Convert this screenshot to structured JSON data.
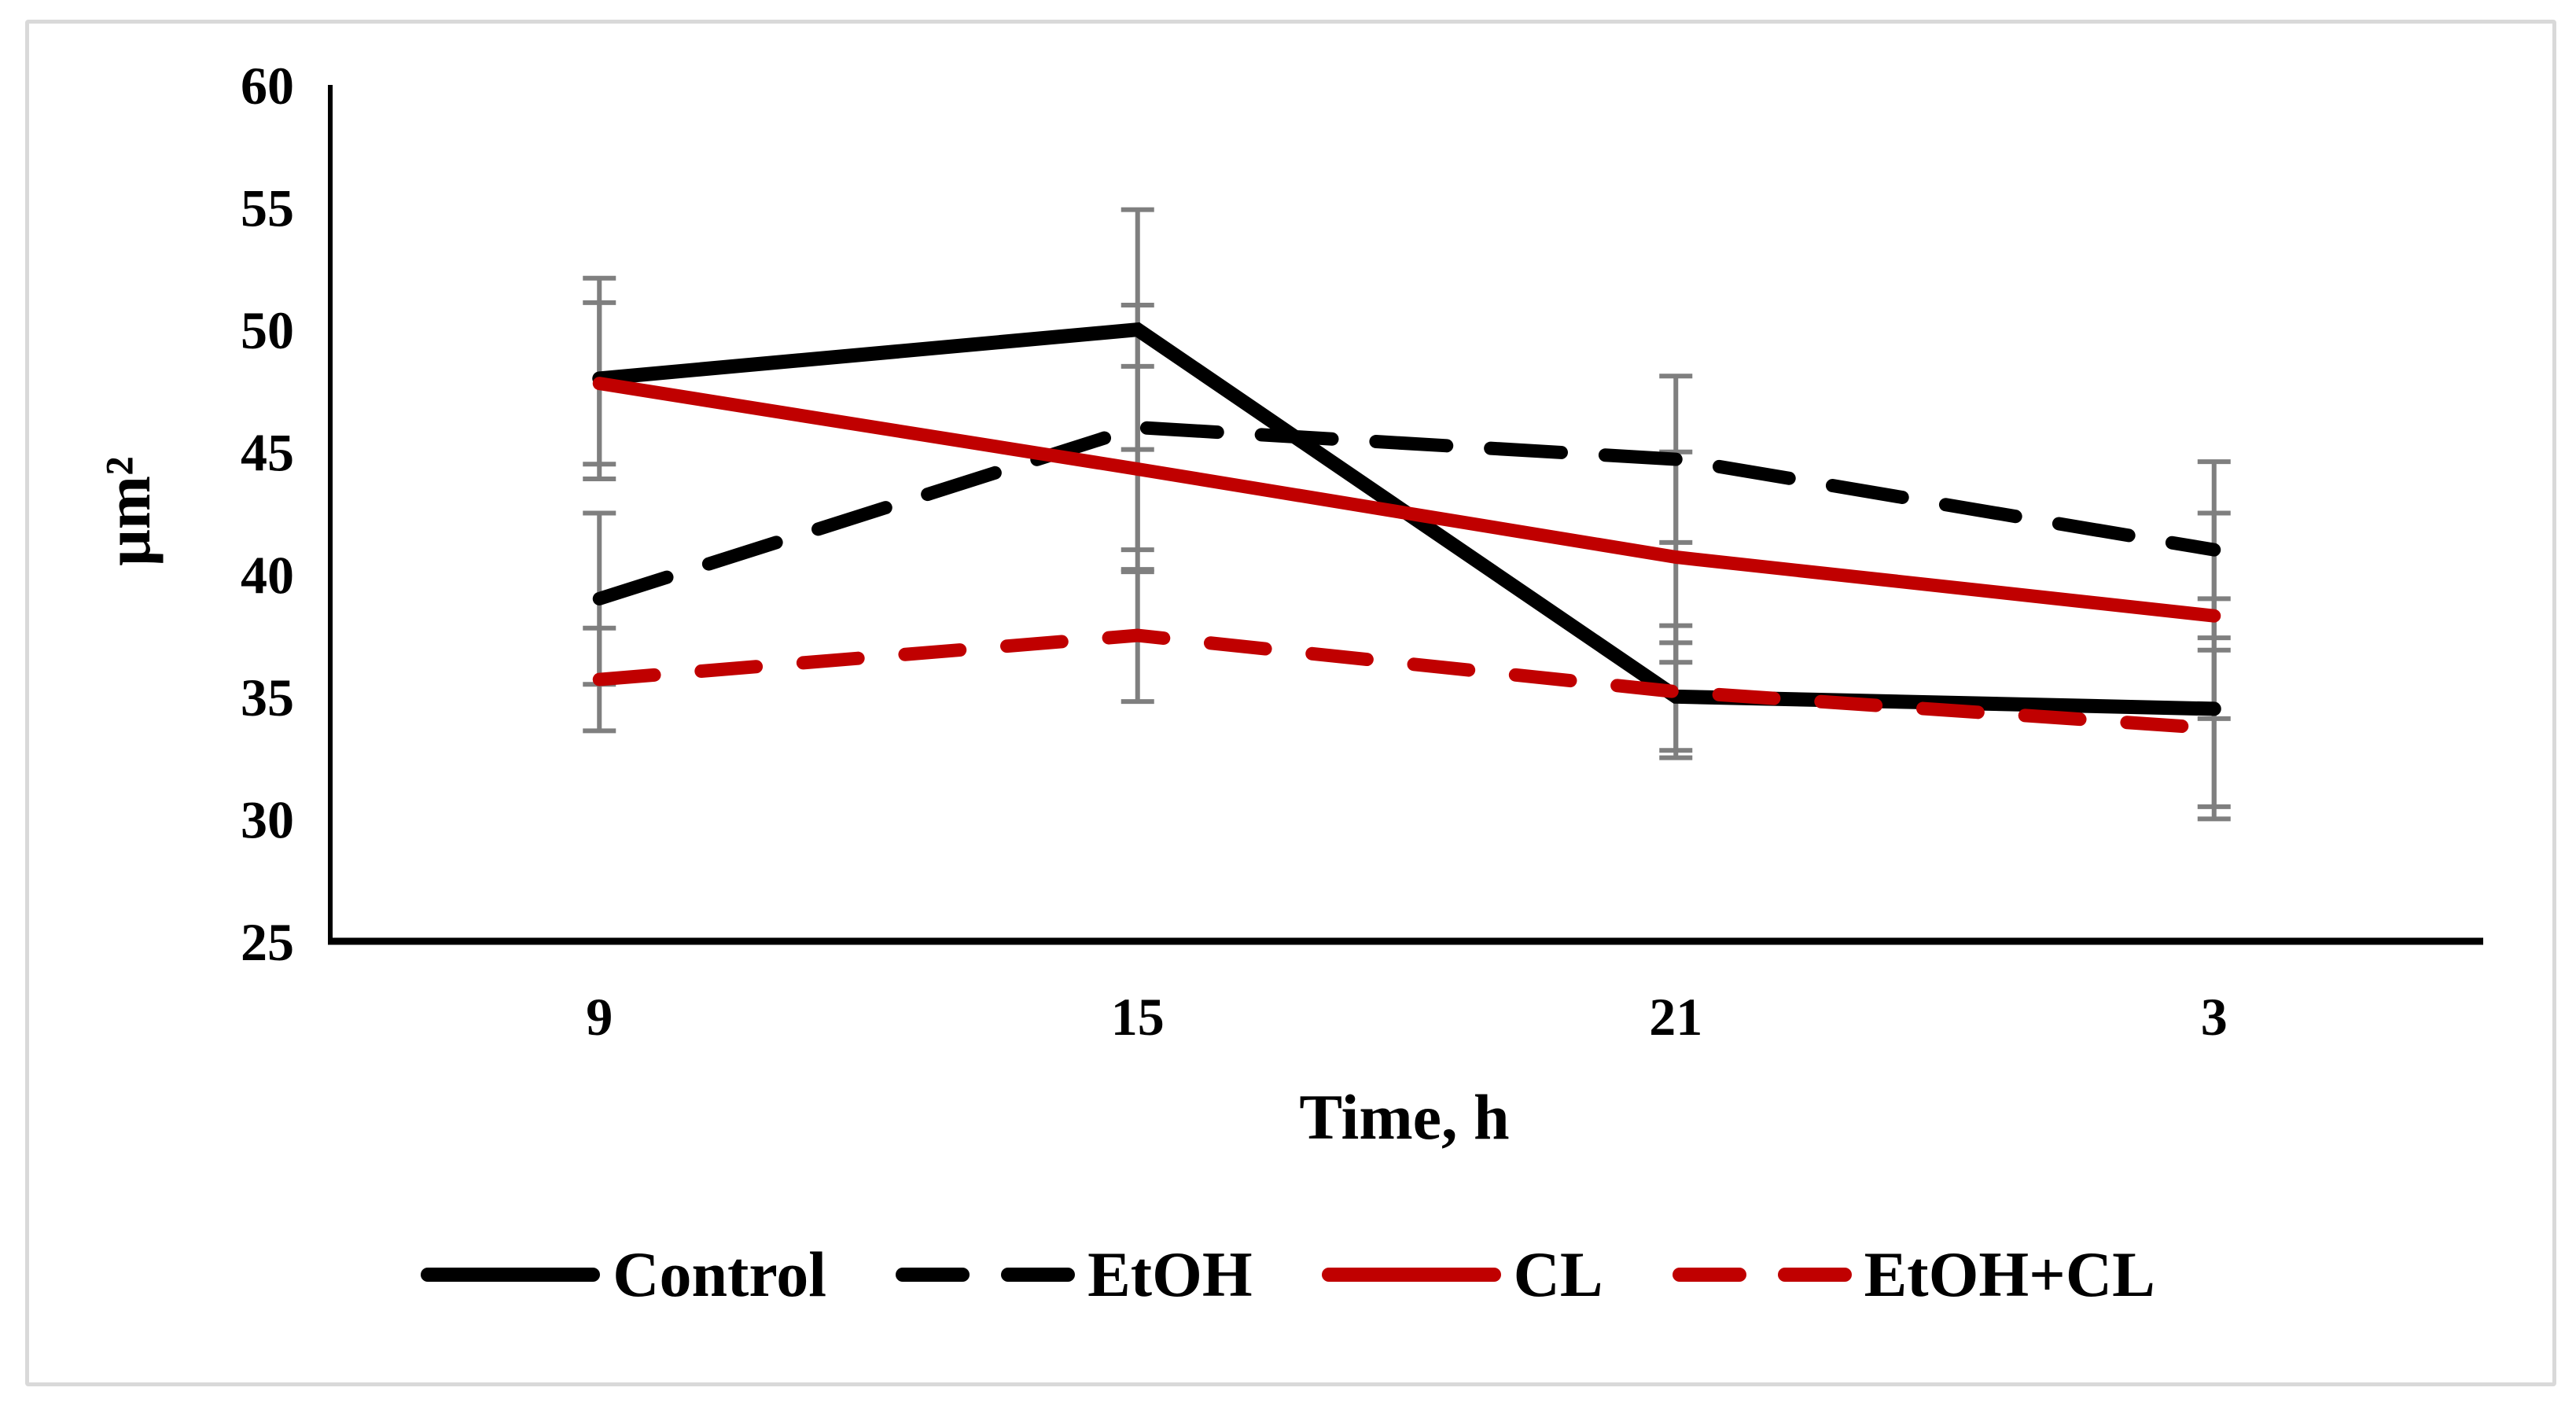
{
  "figure": {
    "background": "#ffffff",
    "border_color": "#d9d9d9"
  },
  "chart_data": {
    "type": "line",
    "title": "",
    "xlabel": "Time, h",
    "ylabel": "μm²",
    "categories": [
      "9",
      "15",
      "21",
      "3"
    ],
    "ylim": [
      25,
      60
    ],
    "ytick_step": 5,
    "yticks": [
      "60",
      "55",
      "50",
      "45",
      "40",
      "35",
      "30",
      "25"
    ],
    "grid": false,
    "legend_position": "bottom",
    "axis_color": "#000000",
    "error_bar_color": "#7f7f7f",
    "series": [
      {
        "name": "Control",
        "color": "#000000",
        "style": "solid",
        "dash": null,
        "values": [
          48,
          50,
          35,
          34.5
        ],
        "errors": [
          4.1,
          4.9,
          2.2,
          4.5
        ]
      },
      {
        "name": "EtOH",
        "color": "#000000",
        "style": "dashed",
        "dash": "90 56",
        "values": [
          39,
          46,
          44.7,
          41
        ],
        "errors": [
          3.5,
          5,
          3.4,
          3.6
        ]
      },
      {
        "name": "CL",
        "color": "#c00000",
        "style": "solid",
        "dash": null,
        "values": [
          47.8,
          44.3,
          40.7,
          38.3
        ],
        "errors": [
          3.3,
          4.2,
          4.3,
          4.2
        ]
      },
      {
        "name": "EtOH+CL",
        "color": "#c00000",
        "style": "dashed",
        "dash": "70 60",
        "values": [
          35.7,
          37.5,
          35.2,
          33.7
        ],
        "errors": [
          2.1,
          2.7,
          2.7,
          3.2
        ]
      }
    ]
  }
}
